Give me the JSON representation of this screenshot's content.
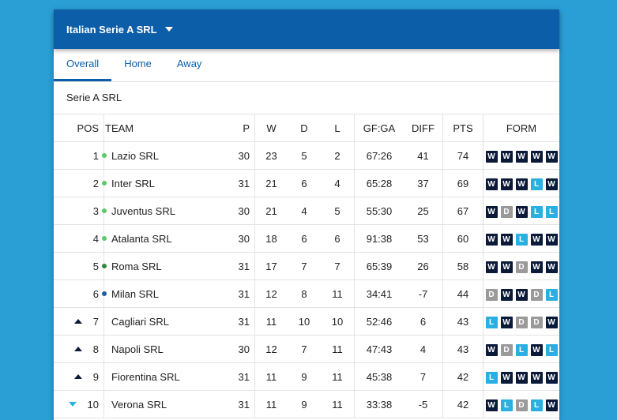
{
  "header": {
    "league": "Italian Serie A SRL",
    "dropdown_icon": "caret-down-icon"
  },
  "tabs": [
    {
      "label": "Overall",
      "active": true
    },
    {
      "label": "Home",
      "active": false
    },
    {
      "label": "Away",
      "active": false
    }
  ],
  "section": {
    "title": "Serie A SRL"
  },
  "columns": {
    "pos": "POS",
    "team": "TEAM",
    "p": "P",
    "w": "W",
    "d": "D",
    "l": "L",
    "gfga": "GF:GA",
    "diff": "DIFF",
    "pts": "PTS",
    "form": "FORM"
  },
  "colors": {
    "header_bg": "#0d5ea8",
    "page_bg": "#2a9fd6",
    "win": "#0c1a3a",
    "draw": "#9a9a9a",
    "loss": "#2ab0e0",
    "zone_light_green": "#5cc86a",
    "zone_dark_green": "#2e8a3a",
    "zone_blue": "#1d5fa0"
  },
  "rows": [
    {
      "pos": "1",
      "trend": "",
      "zone": "zone_light_green",
      "team": "Lazio SRL",
      "p": "30",
      "w": "23",
      "d": "5",
      "l": "2",
      "gfga": "67:26",
      "diff": "41",
      "pts": "74",
      "form": [
        "W",
        "W",
        "W",
        "W",
        "W"
      ]
    },
    {
      "pos": "2",
      "trend": "",
      "zone": "zone_light_green",
      "team": "Inter SRL",
      "p": "31",
      "w": "21",
      "d": "6",
      "l": "4",
      "gfga": "65:28",
      "diff": "37",
      "pts": "69",
      "form": [
        "W",
        "W",
        "W",
        "L",
        "W"
      ]
    },
    {
      "pos": "3",
      "trend": "",
      "zone": "zone_light_green",
      "team": "Juventus SRL",
      "p": "30",
      "w": "21",
      "d": "4",
      "l": "5",
      "gfga": "55:30",
      "diff": "25",
      "pts": "67",
      "form": [
        "W",
        "D",
        "W",
        "L",
        "L"
      ]
    },
    {
      "pos": "4",
      "trend": "",
      "zone": "zone_light_green",
      "team": "Atalanta SRL",
      "p": "30",
      "w": "18",
      "d": "6",
      "l": "6",
      "gfga": "91:38",
      "diff": "53",
      "pts": "60",
      "form": [
        "W",
        "W",
        "L",
        "W",
        "W"
      ]
    },
    {
      "pos": "5",
      "trend": "",
      "zone": "zone_dark_green",
      "team": "Roma SRL",
      "p": "31",
      "w": "17",
      "d": "7",
      "l": "7",
      "gfga": "65:39",
      "diff": "26",
      "pts": "58",
      "form": [
        "W",
        "W",
        "D",
        "W",
        "W"
      ]
    },
    {
      "pos": "6",
      "trend": "",
      "zone": "zone_blue",
      "team": "Milan SRL",
      "p": "31",
      "w": "12",
      "d": "8",
      "l": "11",
      "gfga": "34:41",
      "diff": "-7",
      "pts": "44",
      "form": [
        "D",
        "W",
        "W",
        "D",
        "L"
      ]
    },
    {
      "pos": "7",
      "trend": "up",
      "zone": "",
      "team": "Cagliari SRL",
      "p": "31",
      "w": "11",
      "d": "10",
      "l": "10",
      "gfga": "52:46",
      "diff": "6",
      "pts": "43",
      "form": [
        "L",
        "W",
        "D",
        "D",
        "W"
      ]
    },
    {
      "pos": "8",
      "trend": "up",
      "zone": "",
      "team": "Napoli SRL",
      "p": "30",
      "w": "12",
      "d": "7",
      "l": "11",
      "gfga": "47:43",
      "diff": "4",
      "pts": "43",
      "form": [
        "W",
        "D",
        "L",
        "W",
        "L"
      ]
    },
    {
      "pos": "9",
      "trend": "up",
      "zone": "",
      "team": "Fiorentina SRL",
      "p": "31",
      "w": "11",
      "d": "9",
      "l": "11",
      "gfga": "45:38",
      "diff": "7",
      "pts": "42",
      "form": [
        "L",
        "W",
        "W",
        "W",
        "W"
      ]
    },
    {
      "pos": "10",
      "trend": "down",
      "zone": "",
      "team": "Verona SRL",
      "p": "31",
      "w": "11",
      "d": "9",
      "l": "11",
      "gfga": "33:38",
      "diff": "-5",
      "pts": "42",
      "form": [
        "W",
        "L",
        "D",
        "L",
        "W"
      ]
    }
  ]
}
